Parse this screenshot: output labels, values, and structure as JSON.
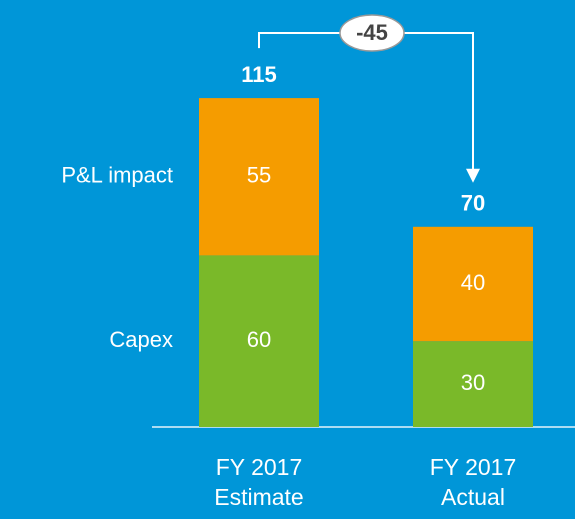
{
  "chart_data": {
    "type": "stacked_bar",
    "categories": [
      "FY 2017 Estimate",
      "FY 2017 Actual"
    ],
    "series": [
      {
        "name": "Capex",
        "color": "#7ab929",
        "values": [
          60,
          30
        ]
      },
      {
        "name": "P&L impact",
        "color": "#f59c00",
        "values": [
          55,
          40
        ]
      }
    ],
    "totals": [
      115,
      70
    ],
    "difference": -45
  }
}
